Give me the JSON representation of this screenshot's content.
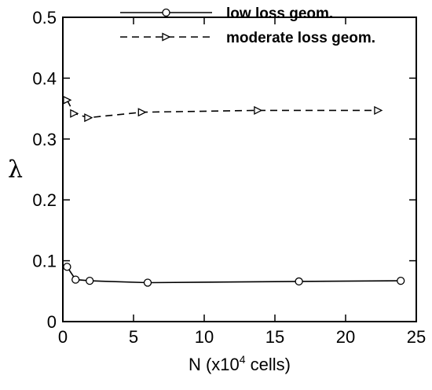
{
  "chart_data": {
    "type": "line",
    "title": "",
    "xlabel": "N (x10",
    "xlabel_sup": "4",
    "xlabel_tail": " cells)",
    "ylabel": "λ",
    "xlim": [
      0,
      25
    ],
    "ylim": [
      0,
      0.5
    ],
    "xticks": [
      "0",
      "5",
      "10",
      "15",
      "20",
      "25"
    ],
    "yticks": [
      "0",
      "0.1",
      "0.2",
      "0.3",
      "0.4",
      "0.5"
    ],
    "xtick_values": [
      0,
      5,
      10,
      15,
      20,
      25
    ],
    "ytick_values": [
      0,
      0.1,
      0.2,
      0.3,
      0.4,
      0.5
    ],
    "grid": false,
    "legend_position": "top-right",
    "series": [
      {
        "name": "low loss geom.",
        "line_style": "solid",
        "marker": "circle",
        "color": "#000000",
        "points": [
          {
            "x": 0.3,
            "y": 0.09
          },
          {
            "x": 0.9,
            "y": 0.069
          },
          {
            "x": 1.9,
            "y": 0.067
          },
          {
            "x": 6.0,
            "y": 0.064
          },
          {
            "x": 16.7,
            "y": 0.066
          },
          {
            "x": 23.9,
            "y": 0.067
          }
        ]
      },
      {
        "name": "moderate loss geom.",
        "line_style": "dashed",
        "marker": "triangle-right",
        "color": "#000000",
        "points": [
          {
            "x": 0.3,
            "y": 0.364
          },
          {
            "x": 0.8,
            "y": 0.342
          },
          {
            "x": 1.8,
            "y": 0.335
          },
          {
            "x": 5.6,
            "y": 0.344
          },
          {
            "x": 13.8,
            "y": 0.347
          },
          {
            "x": 22.3,
            "y": 0.347
          }
        ]
      }
    ]
  }
}
